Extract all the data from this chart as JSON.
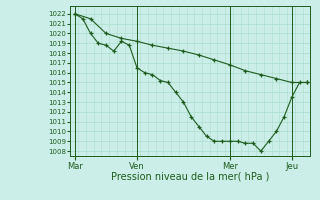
{
  "bg_color": "#cceee8",
  "grid_color": "#aaddcc",
  "line_color": "#1e5c1e",
  "xlabel": "Pression niveau de la mer( hPa )",
  "ylim": [
    1007.5,
    1022.8
  ],
  "xlim": [
    0,
    15.5
  ],
  "yticks": [
    1008,
    1009,
    1010,
    1011,
    1012,
    1013,
    1014,
    1015,
    1016,
    1017,
    1018,
    1019,
    1020,
    1021,
    1022
  ],
  "day_labels": [
    "Mar",
    "Ven",
    "Mer",
    "Jeu"
  ],
  "day_positions": [
    0.3,
    4.3,
    10.3,
    14.3
  ],
  "vline_positions": [
    0.3,
    4.3,
    10.3,
    14.3
  ],
  "series1_x": [
    0.3,
    0.8,
    1.3,
    1.8,
    2.3,
    2.8,
    3.3,
    3.8,
    4.3,
    4.8,
    5.3,
    5.8,
    6.3,
    6.8,
    7.3,
    7.8,
    8.3,
    8.8,
    9.3,
    9.8,
    10.3,
    10.8,
    11.3,
    11.8,
    12.3,
    12.8,
    13.3,
    13.8,
    14.3,
    14.8,
    15.3
  ],
  "series1_y": [
    1022.0,
    1021.5,
    1020.0,
    1019.0,
    1018.8,
    1018.2,
    1019.2,
    1018.8,
    1016.5,
    1016.0,
    1015.8,
    1015.2,
    1015.0,
    1014.0,
    1013.0,
    1011.5,
    1010.5,
    1009.5,
    1009.0,
    1009.0,
    1009.0,
    1009.0,
    1008.8,
    1008.8,
    1008.0,
    1009.0,
    1010.0,
    1011.5,
    1013.5,
    1015.0,
    1015.0
  ],
  "series2_x": [
    0.3,
    1.3,
    2.3,
    3.3,
    4.3,
    5.3,
    6.3,
    7.3,
    8.3,
    9.3,
    10.3,
    11.3,
    12.3,
    13.3,
    14.3,
    15.3
  ],
  "series2_y": [
    1022.0,
    1021.5,
    1020.0,
    1019.5,
    1019.2,
    1018.8,
    1018.5,
    1018.2,
    1017.8,
    1017.3,
    1016.8,
    1016.2,
    1015.8,
    1015.4,
    1015.0,
    1015.0
  ]
}
